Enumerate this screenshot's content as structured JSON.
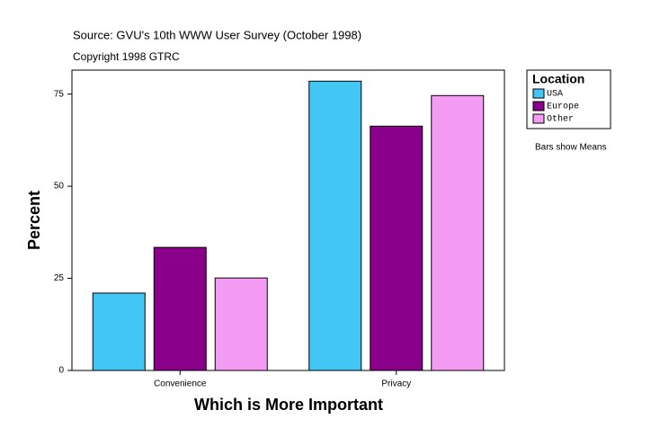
{
  "chart_data": {
    "type": "bar",
    "title": "Source: GVU's 10th WWW User Survey (October 1998)",
    "subtitle": "Copyright 1998 GTRC",
    "x_label": "Which is More Important",
    "y_label": "Percent",
    "note": "Bars show Means",
    "legend_title": "Location",
    "legend_position": "right",
    "categories": [
      "Convenience",
      "Privacy"
    ],
    "series": [
      {
        "name": "USA",
        "color": "#42c6f4",
        "values": [
          21.0,
          78.5
        ]
      },
      {
        "name": "Europe",
        "color": "#8b008b",
        "values": [
          33.4,
          66.3
        ]
      },
      {
        "name": "Other",
        "color": "#f49cf4",
        "values": [
          25.1,
          74.6
        ]
      }
    ],
    "ylim": [
      0,
      81.5
    ],
    "yticks": [
      0,
      25,
      50,
      75
    ]
  }
}
